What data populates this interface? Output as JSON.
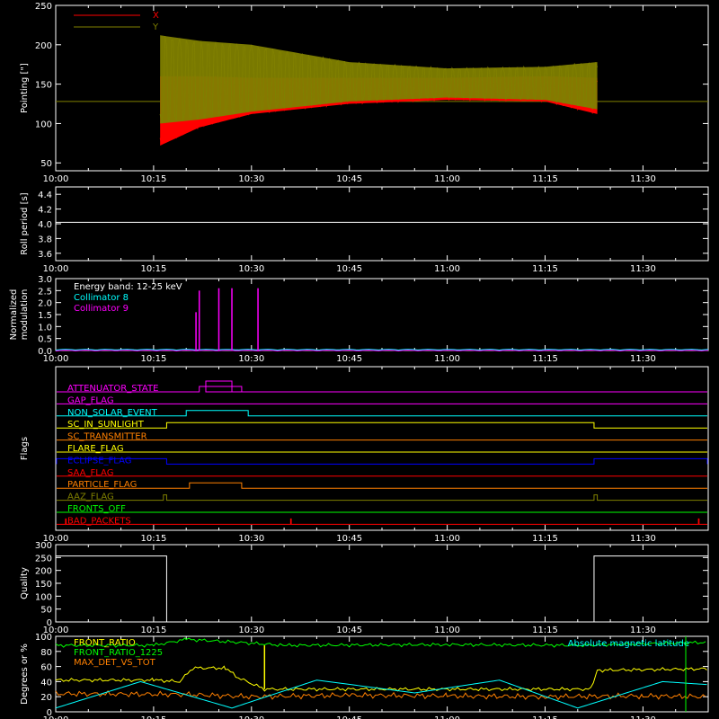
{
  "chart_data": [
    {
      "panel": "pointing",
      "type": "line",
      "ylabel": "Pointing [\"]",
      "ylim": [
        40,
        250
      ],
      "yticks": [
        50,
        100,
        150,
        200,
        250
      ],
      "x_range": [
        "10:00",
        "11:40"
      ],
      "xticks": [
        "10:00",
        "10:15",
        "10:30",
        "10:45",
        "11:00",
        "11:15",
        "11:30"
      ],
      "legend": [
        {
          "name": "X",
          "color": "#ff0000"
        },
        {
          "name": "Y",
          "color": "#808000"
        }
      ],
      "baseline": 128,
      "data_window": [
        "10:16",
        "11:23"
      ],
      "series": [
        {
          "name": "X",
          "color": "#ff0000",
          "envelope": [
            {
              "t": "10:16",
              "min": 72,
              "max": 160
            },
            {
              "t": "10:22",
              "min": 95,
              "max": 160
            },
            {
              "t": "10:30",
              "min": 112,
              "max": 158
            },
            {
              "t": "10:45",
              "min": 125,
              "max": 158
            },
            {
              "t": "11:00",
              "min": 130,
              "max": 158
            },
            {
              "t": "11:15",
              "min": 128,
              "max": 160
            },
            {
              "t": "11:23",
              "min": 112,
              "max": 158
            }
          ]
        },
        {
          "name": "Y",
          "color": "#808000",
          "envelope": [
            {
              "t": "10:16",
              "min": 100,
              "max": 212
            },
            {
              "t": "10:22",
              "min": 105,
              "max": 205
            },
            {
              "t": "10:30",
              "min": 115,
              "max": 200
            },
            {
              "t": "10:45",
              "min": 128,
              "max": 178
            },
            {
              "t": "11:00",
              "min": 133,
              "max": 170
            },
            {
              "t": "11:15",
              "min": 130,
              "max": 172
            },
            {
              "t": "11:23",
              "min": 118,
              "max": 178
            }
          ]
        }
      ]
    },
    {
      "panel": "roll_period",
      "type": "line",
      "ylabel": "Roll period [s]",
      "ylim": [
        3.5,
        4.5
      ],
      "yticks": [
        "3.6",
        "3.8",
        "4.0",
        "4.2",
        "4.4"
      ],
      "xticks": [
        "10:00",
        "10:15",
        "10:30",
        "10:45",
        "11:00",
        "11:15",
        "11:30"
      ],
      "series": [
        {
          "color": "#ffffff",
          "x": [
            "10:00",
            "11:40"
          ],
          "y": [
            4.02,
            4.02
          ]
        }
      ]
    },
    {
      "panel": "modulation",
      "type": "line",
      "ylabel": "Normalized modulation",
      "ylim": [
        0,
        3.0
      ],
      "yticks": [
        "0.0",
        "0.5",
        "1.0",
        "1.5",
        "2.0",
        "2.5",
        "3.0"
      ],
      "xticks": [
        "10:00",
        "10:15",
        "10:30",
        "10:45",
        "11:00",
        "11:15",
        "11:30"
      ],
      "legend": [
        {
          "name": "Energy band: 12-25 keV",
          "color": "#ffffff"
        },
        {
          "name": "Collimator 8",
          "color": "#00ffff"
        },
        {
          "name": "Collimator 9",
          "color": "#ff00ff"
        }
      ],
      "spikes": [
        {
          "t": "10:21.5",
          "value": 1.6
        },
        {
          "t": "10:22",
          "value": 2.5
        },
        {
          "t": "10:25",
          "value": 2.6
        },
        {
          "t": "10:27",
          "value": 2.6
        },
        {
          "t": "10:31",
          "value": 2.6
        }
      ]
    },
    {
      "panel": "flags",
      "type": "line",
      "ylabel": "Flags",
      "xticks": [
        "10:00",
        "10:15",
        "10:30",
        "10:45",
        "11:00",
        "11:15",
        "11:30"
      ],
      "flags": [
        {
          "name": "ATTENUATOR_STATE",
          "color": "#ff00ff",
          "steps": [
            {
              "from": "10:22",
              "to": "10:28.5",
              "level": 1
            },
            {
              "from": "10:23",
              "to": "10:27",
              "level": 2
            }
          ]
        },
        {
          "name": "GAP_FLAG",
          "color": "#ff00ff",
          "steps": []
        },
        {
          "name": "NON_SOLAR_EVENT",
          "color": "#00ffff",
          "steps": [
            {
              "from": "10:20",
              "to": "10:29.5",
              "level": 1
            }
          ]
        },
        {
          "name": "SC_IN_SUNLIGHT",
          "color": "#ffff00",
          "steps": [
            {
              "from": "10:17",
              "to": "11:22.5",
              "level": 1
            }
          ]
        },
        {
          "name": "SC_TRANSMITTER",
          "color": "#ff8000",
          "steps": []
        },
        {
          "name": "FLARE_FLAG",
          "color": "#ffff00",
          "steps": []
        },
        {
          "name": "ECLIPSE_FLAG",
          "color": "#0000ff",
          "steps": [
            {
              "from": "10:00",
              "to": "10:17",
              "level": 1
            },
            {
              "from": "11:22.5",
              "to": "11:40",
              "level": 1
            }
          ]
        },
        {
          "name": "SAA_FLAG",
          "color": "#ff0000",
          "steps": []
        },
        {
          "name": "PARTICLE_FLAG",
          "color": "#ff8000",
          "steps": [
            {
              "from": "10:20.5",
              "to": "10:28.5",
              "level": 1
            }
          ]
        },
        {
          "name": "AAZ_FLAG",
          "color": "#808000",
          "steps": [
            {
              "from": "10:16.5",
              "to": "10:17",
              "level": 1
            },
            {
              "from": "11:22.5",
              "to": "11:23",
              "level": 1
            }
          ]
        },
        {
          "name": "FRONTS_OFF",
          "color": "#00ff00",
          "steps": []
        },
        {
          "name": "BAD_PACKETS",
          "color": "#ff0000",
          "steps": [
            {
              "from": "10:01.5",
              "to": "10:01.6",
              "level": 1
            },
            {
              "from": "10:36",
              "to": "10:36.1",
              "level": 1
            },
            {
              "from": "11:38.5",
              "to": "11:38.6",
              "level": 1
            }
          ]
        }
      ]
    },
    {
      "panel": "quality",
      "type": "line",
      "ylabel": "Quality",
      "ylim": [
        0,
        300
      ],
      "yticks": [
        0,
        50,
        100,
        150,
        200,
        250,
        300
      ],
      "xticks": [
        "10:00",
        "10:15",
        "10:30",
        "10:45",
        "11:00",
        "11:15",
        "11:30"
      ],
      "series": [
        {
          "color": "#ffffff",
          "x": [
            "10:00",
            "10:17",
            "10:17",
            "11:22.5",
            "11:22.5",
            "11:40"
          ],
          "y": [
            256,
            256,
            0,
            0,
            256,
            256
          ]
        }
      ]
    },
    {
      "panel": "degrees",
      "type": "line",
      "ylabel": "Degrees or %",
      "ylim": [
        0,
        100
      ],
      "yticks": [
        0,
        20,
        40,
        60,
        80,
        100
      ],
      "xticks": [
        "10:00",
        "10:15",
        "10:30",
        "10:45",
        "11:00",
        "11:15",
        "11:30"
      ],
      "legend": [
        {
          "name": "FRONT_RATIO",
          "color": "#ffff00"
        },
        {
          "name": "FRONT_RATIO_1225",
          "color": "#00ff00"
        },
        {
          "name": "MAX_DET_VS_TOT",
          "color": "#ff8000"
        }
      ],
      "annotation": {
        "text": "Absolute magnetic latitude",
        "color": "#00ffff"
      },
      "series": [
        {
          "name": "FRONT_RATIO",
          "color": "#ffff00",
          "x": [
            "10:00",
            "10:15",
            "10:19",
            "10:21",
            "10:26",
            "10:28",
            "10:32",
            "11:22",
            "11:23",
            "11:40"
          ],
          "y": [
            42,
            42,
            40,
            58,
            58,
            45,
            30,
            30,
            55,
            57
          ]
        },
        {
          "name": "FRONT_RATIO_1225",
          "color": "#00ff00",
          "x": [
            "10:00",
            "10:15",
            "10:20",
            "10:28",
            "10:35",
            "11:00",
            "11:20",
            "11:30",
            "11:40"
          ],
          "y": [
            88,
            88,
            96,
            92,
            88,
            89,
            88,
            90,
            92
          ]
        },
        {
          "name": "MAX_DET_VS_TOT",
          "color": "#ff8000",
          "x": [
            "10:00",
            "10:20",
            "10:30",
            "10:45",
            "11:00",
            "11:15",
            "11:30",
            "11:40"
          ],
          "y": [
            24,
            23,
            20,
            22,
            21,
            20,
            21,
            20
          ]
        },
        {
          "name": "Absolute magnetic latitude",
          "color": "#00ffff",
          "x": [
            "10:00",
            "10:13",
            "10:27",
            "10:40",
            "10:55",
            "11:08",
            "11:20",
            "11:33",
            "11:40"
          ],
          "y": [
            5,
            40,
            5,
            42,
            25,
            42,
            5,
            40,
            36
          ]
        }
      ]
    }
  ]
}
